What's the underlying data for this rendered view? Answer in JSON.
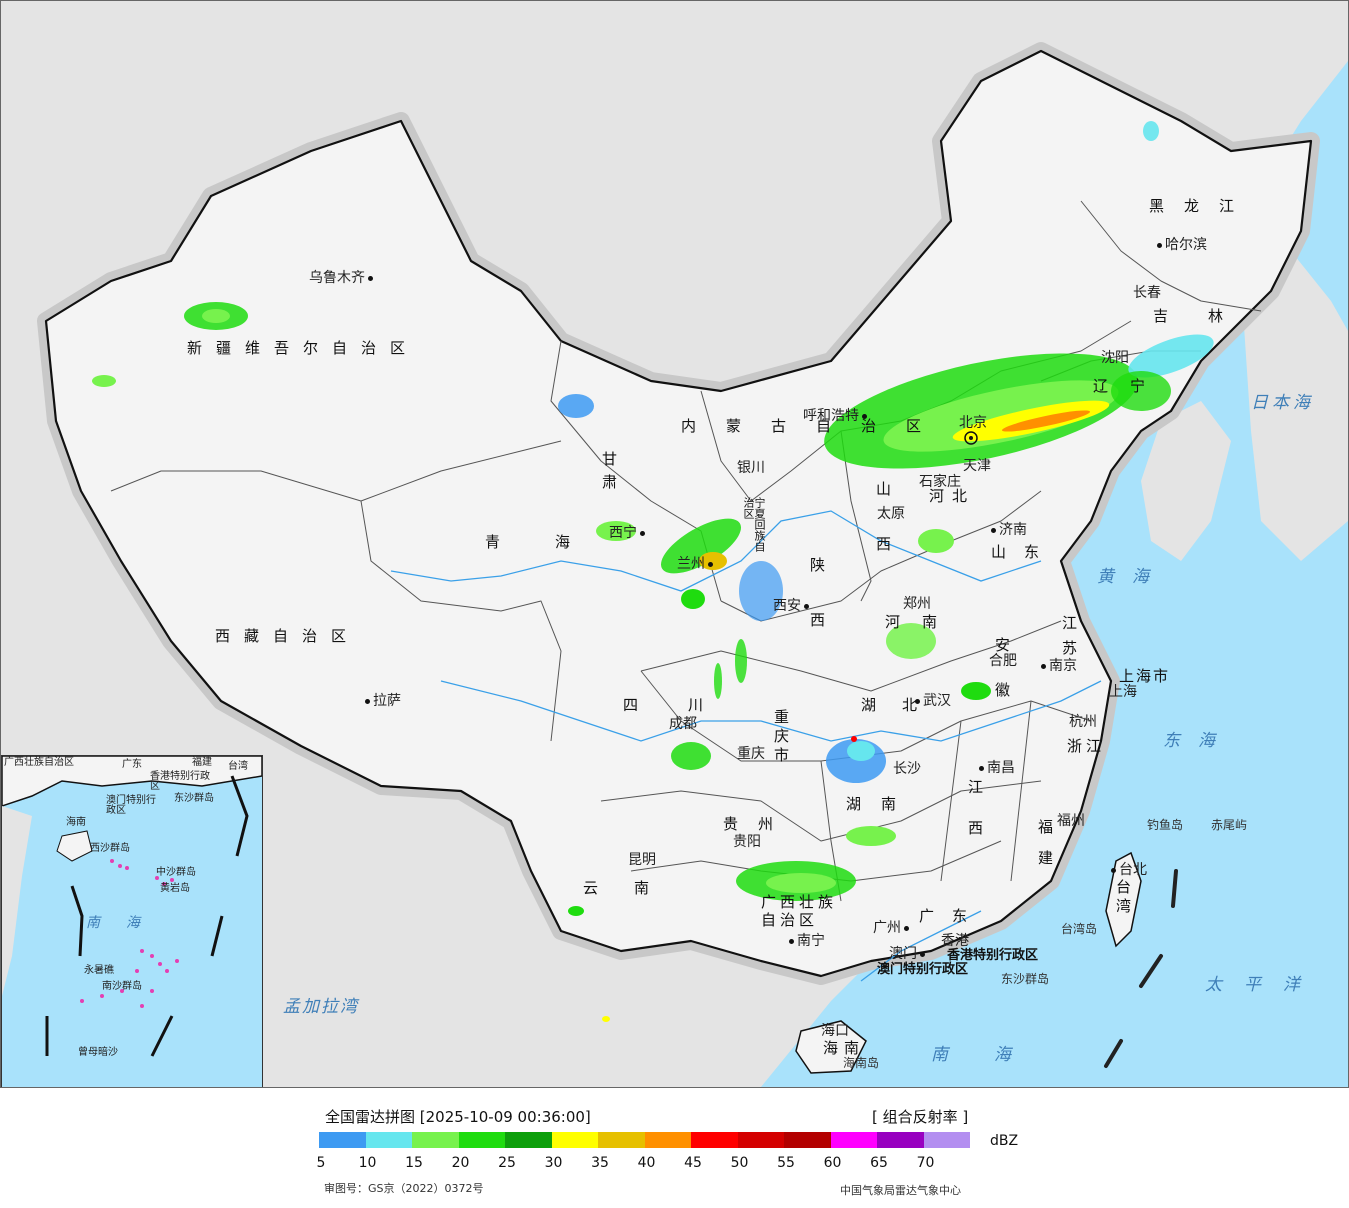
{
  "map": {
    "colors": {
      "ocean": "#a9e2fb",
      "outside": "#e4e4e4",
      "china_land": "#f4f4f4",
      "border": "#111111",
      "rivers": "#3aa0e8"
    },
    "province_labels": [
      {
        "text": "新疆维吾尔自治区"
      },
      {
        "text": "西藏自治区"
      },
      {
        "text": "青海"
      },
      {
        "text": "甘肃"
      },
      {
        "text": "内蒙古自治区"
      },
      {
        "text": "黑龙江"
      },
      {
        "text": "吉林"
      },
      {
        "text": "辽宁"
      },
      {
        "text": "河北"
      },
      {
        "text": "山西"
      },
      {
        "text": "山东"
      },
      {
        "text": "陕西"
      },
      {
        "text": "河南"
      },
      {
        "text": "江苏"
      },
      {
        "text": "安徽"
      },
      {
        "text": "四川"
      },
      {
        "text": "重庆市"
      },
      {
        "text": "湖北"
      },
      {
        "text": "湖南"
      },
      {
        "text": "江西"
      },
      {
        "text": "浙江"
      },
      {
        "text": "福建"
      },
      {
        "text": "贵州"
      },
      {
        "text": "云南"
      },
      {
        "text": "广西壮族自治区"
      },
      {
        "text": "广东"
      },
      {
        "text": "海南"
      },
      {
        "text": "台湾"
      },
      {
        "text": "上海市"
      },
      {
        "text": "宁夏回族自治区"
      }
    ],
    "cities": [
      {
        "text": "乌鲁木齐"
      },
      {
        "text": "拉萨"
      },
      {
        "text": "西宁"
      },
      {
        "text": "兰州"
      },
      {
        "text": "银川"
      },
      {
        "text": "呼和浩特"
      },
      {
        "text": "哈尔滨"
      },
      {
        "text": "长春"
      },
      {
        "text": "沈阳"
      },
      {
        "text": "北京"
      },
      {
        "text": "天津"
      },
      {
        "text": "石家庄"
      },
      {
        "text": "太原"
      },
      {
        "text": "济南"
      },
      {
        "text": "郑州"
      },
      {
        "text": "西安"
      },
      {
        "text": "合肥"
      },
      {
        "text": "南京"
      },
      {
        "text": "上海"
      },
      {
        "text": "杭州"
      },
      {
        "text": "成都"
      },
      {
        "text": "重庆"
      },
      {
        "text": "武汉"
      },
      {
        "text": "长沙"
      },
      {
        "text": "南昌"
      },
      {
        "text": "福州"
      },
      {
        "text": "贵阳"
      },
      {
        "text": "昆明"
      },
      {
        "text": "南宁"
      },
      {
        "text": "广州"
      },
      {
        "text": "香港"
      },
      {
        "text": "澳门"
      },
      {
        "text": "海口"
      },
      {
        "text": "台北"
      }
    ],
    "special_regions": [
      "香港特别行政区",
      "澳门特别行政区"
    ],
    "seas": [
      "日本海",
      "黄海",
      "东海",
      "太平洋",
      "南海",
      "孟加拉湾"
    ],
    "islands": [
      "钓鱼岛",
      "赤尾屿",
      "台湾岛",
      "东沙群岛",
      "海南岛"
    ],
    "inset": {
      "labels": [
        "广西壮族自治区",
        "广东",
        "福建",
        "台湾",
        "香港特别行政区",
        "澳门特别行政区",
        "东沙群岛",
        "海南",
        "西沙群岛",
        "中沙群岛",
        "黄岩岛",
        "南海",
        "永暑礁",
        "南沙群岛",
        "曾母暗沙"
      ]
    }
  },
  "legend": {
    "title": "全国雷达拼图 [2025-10-09 00:36:00]",
    "product": "[ 组合反射率 ]",
    "unit": "dBZ",
    "colors": [
      "#3d9af2",
      "#66e6ee",
      "#77f24d",
      "#1fdc0f",
      "#0d9f0b",
      "#ffff00",
      "#e6c000",
      "#ff9000",
      "#ff0000",
      "#d40000",
      "#b30000",
      "#ff00ff",
      "#9800c0",
      "#b38ef0"
    ],
    "ticks": [
      "5",
      "10",
      "15",
      "20",
      "25",
      "30",
      "35",
      "40",
      "45",
      "50",
      "55",
      "60",
      "65",
      "70"
    ],
    "approval": "审图号：GS京（2022）0372号",
    "issuer": "中国气象局雷达气象中心"
  }
}
